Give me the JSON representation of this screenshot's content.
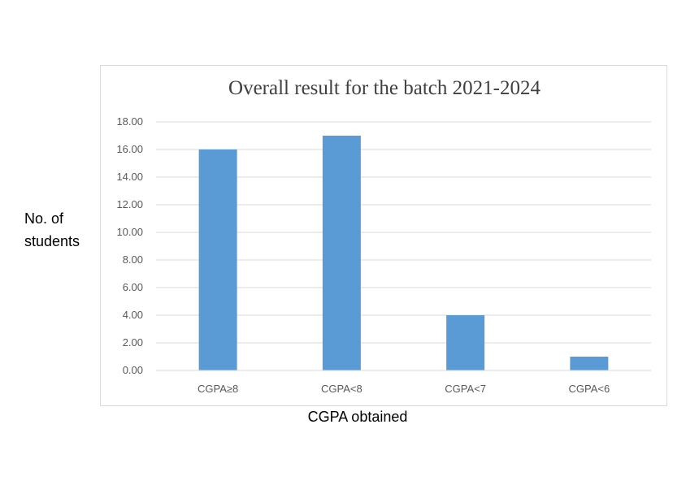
{
  "chart_data": {
    "type": "bar",
    "title": "Overall result for the batch 2021-2024",
    "xlabel": "CGPA obtained",
    "ylabel": "No. of students",
    "ylabel_lines": [
      "No. of",
      "students"
    ],
    "categories": [
      "CGPA≥8",
      "CGPA<8",
      "CGPA<7",
      "CGPA<6"
    ],
    "values": [
      16,
      17,
      4,
      1
    ],
    "ylim": [
      0,
      18
    ],
    "yticks": [
      "0.00",
      "2.00",
      "4.00",
      "6.00",
      "8.00",
      "10.00",
      "12.00",
      "14.00",
      "16.00",
      "18.00"
    ],
    "grid": true,
    "legend": "none",
    "bar_color": "#5b9bd5",
    "grid_color": "#d9d9d9"
  }
}
